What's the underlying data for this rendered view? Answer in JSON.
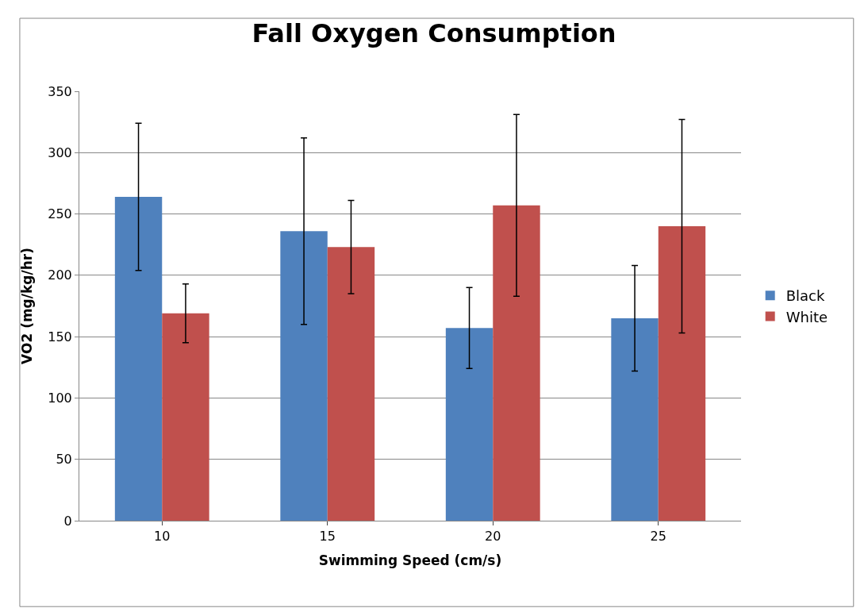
{
  "chart_data": {
    "type": "bar",
    "title": "Fall Oxygen Consumption",
    "xlabel": "Swimming Speed (cm/s)",
    "ylabel": "VO2 (mg/kg/hr)",
    "categories": [
      "10",
      "15",
      "20",
      "25"
    ],
    "series": [
      {
        "name": "Black",
        "color": "#4f81bd",
        "values": [
          264,
          236,
          157,
          165
        ],
        "errors": [
          60,
          76,
          33,
          43
        ]
      },
      {
        "name": "White",
        "color": "#c0504d",
        "values": [
          169,
          223,
          257,
          240
        ],
        "errors": [
          24,
          38,
          74,
          87
        ]
      }
    ],
    "ylim": [
      0,
      350
    ],
    "yticks": [
      0,
      50,
      100,
      150,
      200,
      250,
      300,
      350
    ],
    "grid": "y",
    "legend": "right"
  }
}
